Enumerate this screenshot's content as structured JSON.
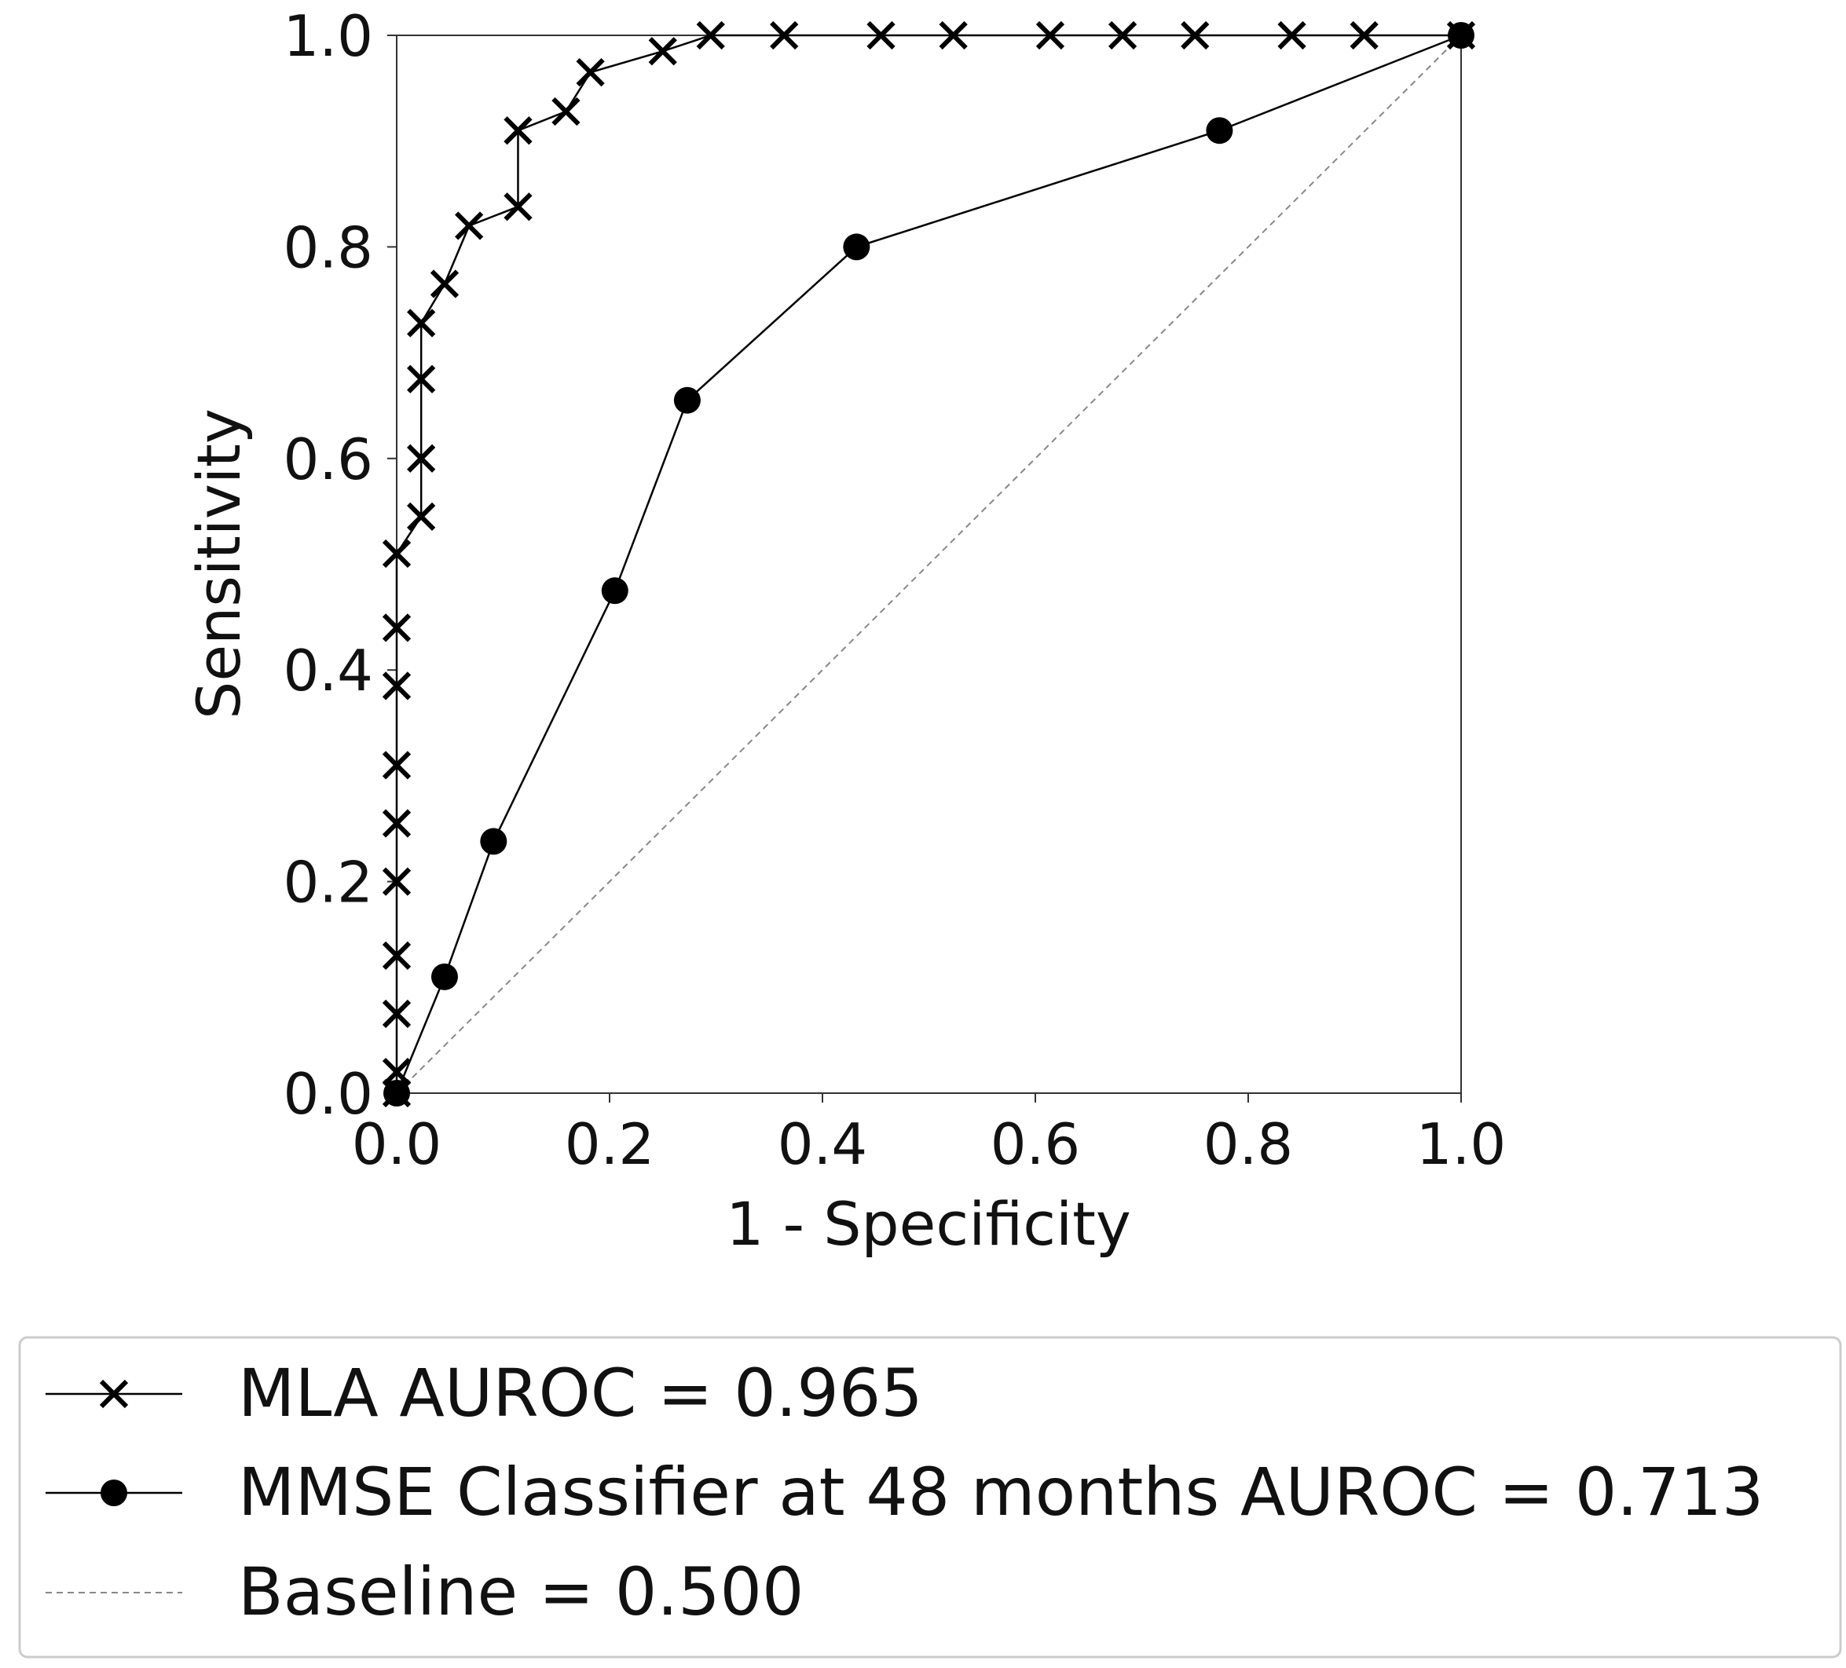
{
  "chart_data": {
    "type": "line",
    "title": "",
    "xlabel": "1 - Specificity",
    "ylabel": "Sensitivity",
    "xlim": [
      0.0,
      1.0
    ],
    "ylim": [
      0.0,
      1.0
    ],
    "grid": false,
    "xticks": [
      "0.0",
      "0.2",
      "0.4",
      "0.6",
      "0.8",
      "1.0"
    ],
    "yticks": [
      "0.0",
      "0.2",
      "0.4",
      "0.6",
      "0.8",
      "1.0"
    ],
    "legend_position": "bottom",
    "series": [
      {
        "name": "MLA AUROC = 0.965",
        "marker": "x",
        "line_style": "solid",
        "color": "#000000",
        "points": [
          [
            0.0,
            0.0
          ],
          [
            0.0,
            0.02
          ],
          [
            0.0,
            0.075
          ],
          [
            0.0,
            0.13
          ],
          [
            0.0,
            0.2
          ],
          [
            0.0,
            0.255
          ],
          [
            0.0,
            0.31
          ],
          [
            0.0,
            0.385
          ],
          [
            0.0,
            0.44
          ],
          [
            0.0,
            0.51
          ],
          [
            0.023,
            0.545
          ],
          [
            0.023,
            0.6
          ],
          [
            0.023,
            0.675
          ],
          [
            0.023,
            0.728
          ],
          [
            0.045,
            0.765
          ],
          [
            0.068,
            0.82
          ],
          [
            0.114,
            0.838
          ],
          [
            0.114,
            0.91
          ],
          [
            0.159,
            0.928
          ],
          [
            0.182,
            0.965
          ],
          [
            0.25,
            0.985
          ],
          [
            0.295,
            1.0
          ],
          [
            0.364,
            1.0
          ],
          [
            0.455,
            1.0
          ],
          [
            0.523,
            1.0
          ],
          [
            0.614,
            1.0
          ],
          [
            0.682,
            1.0
          ],
          [
            0.75,
            1.0
          ],
          [
            0.841,
            1.0
          ],
          [
            0.909,
            1.0
          ],
          [
            1.0,
            1.0
          ]
        ]
      },
      {
        "name": "MMSE Classifier at 48 months AUROC = 0.713",
        "marker": "circle",
        "line_style": "solid",
        "color": "#000000",
        "points": [
          [
            0.0,
            0.0
          ],
          [
            0.045,
            0.11
          ],
          [
            0.091,
            0.238
          ],
          [
            0.205,
            0.475
          ],
          [
            0.273,
            0.655
          ],
          [
            0.432,
            0.8
          ],
          [
            0.773,
            0.91
          ],
          [
            1.0,
            1.0
          ]
        ]
      },
      {
        "name": "Baseline = 0.500",
        "marker": "none",
        "line_style": "dashed",
        "color": "#888888",
        "points": [
          [
            0.0,
            0.0
          ],
          [
            1.0,
            1.0
          ]
        ]
      }
    ]
  }
}
